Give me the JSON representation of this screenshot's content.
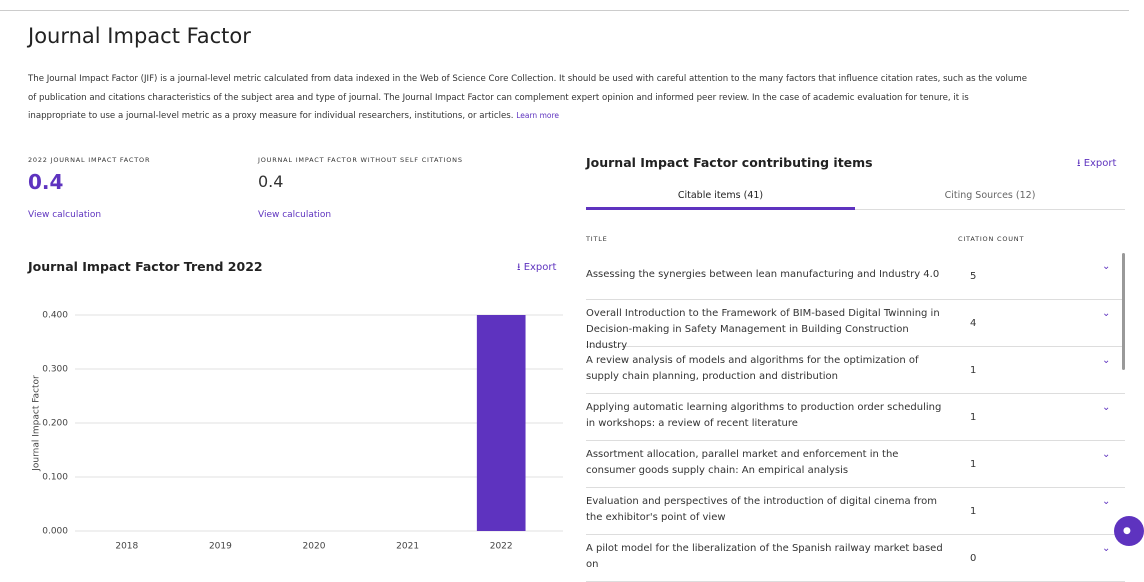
{
  "header": {
    "title": "Journal Impact Factor",
    "description": "The Journal Impact Factor (JIF) is a journal-level metric calculated from data indexed in the Web of Science Core Collection. It should be used with careful attention to the many factors that influence citation rates, such as the volume of publication and citations characteristics of the subject area and type of journal. The Journal Impact Factor can complement expert opinion and informed peer review. In the case of academic evaluation for tenure, it is inappropriate to use a journal-level metric as a proxy measure for individual researchers, institutions, or articles.",
    "learn_more": "Learn more"
  },
  "metrics": [
    {
      "label": "2022 JOURNAL IMPACT FACTOR",
      "value": "0.4",
      "link": "View calculation"
    },
    {
      "label": "JOURNAL IMPACT FACTOR WITHOUT SELF CITATIONS",
      "value": "0.4",
      "link": "View calculation"
    }
  ],
  "trend": {
    "export": "Export"
  },
  "chart_data": {
    "type": "bar",
    "title": "Journal Impact Factor Trend 2022",
    "categories": [
      "2018",
      "2019",
      "2020",
      "2021",
      "2022"
    ],
    "values": [
      null,
      null,
      null,
      null,
      0.4
    ],
    "color": "#5e33bf",
    "ylabel": "Journal Impact Factor",
    "ylim": [
      0,
      0.4
    ],
    "yticks": [
      {
        "value": 0,
        "label": "0.000"
      },
      {
        "value": 0.1,
        "label": "0.100"
      },
      {
        "value": 0.2,
        "label": "0.200"
      },
      {
        "value": 0.3,
        "label": "0.300"
      },
      {
        "value": 0.4,
        "label": "0.400"
      }
    ],
    "grid": true
  },
  "items": {
    "title": "Journal Impact Factor contributing items",
    "export": "Export",
    "tabs": [
      "Citable items (41)",
      "Citing Sources (12)"
    ],
    "columns": [
      "TITLE",
      "CITATION COUNT"
    ],
    "rows": [
      {
        "title": "Assessing the synergies between lean manufacturing and Industry 4.0",
        "count": 5
      },
      {
        "title": "Overall Introduction to the Framework of BIM-based Digital Twinning in Decision-making in Safety Management in Building Construction Industry",
        "count": 4
      },
      {
        "title": "A review analysis of models and algorithms for the optimization of supply chain planning, production and distribution",
        "count": 1
      },
      {
        "title": "Applying automatic learning algorithms to production order scheduling in workshops: a review of recent literature",
        "count": 1
      },
      {
        "title": "Assortment allocation, parallel market and enforcement in the consumer goods supply chain: An empirical analysis",
        "count": 1
      },
      {
        "title": "Evaluation and perspectives of the introduction of digital cinema from the exhibitor's point of view",
        "count": 1
      },
      {
        "title": "A pilot model for the liberalization of the Spanish railway market based on",
        "count": 0
      }
    ]
  }
}
